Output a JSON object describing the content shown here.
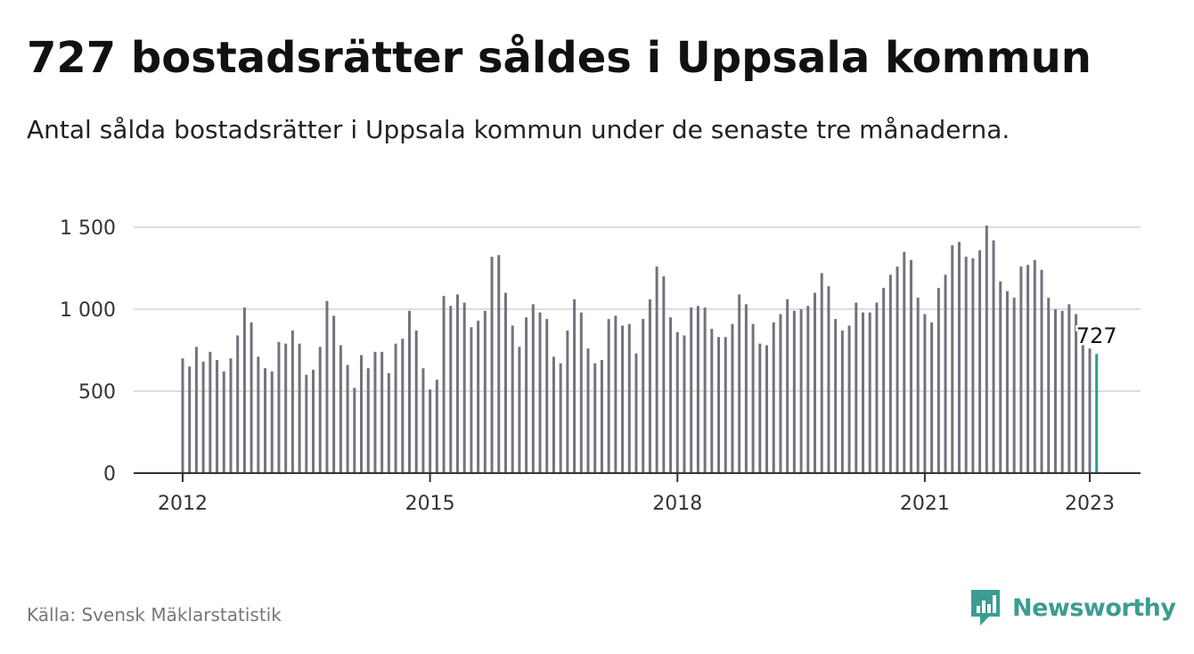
{
  "title": "727 bostadsrätter såldes i Uppsala kommun",
  "subtitle": "Antal sålda bostadsrätter i Uppsala kommun under de senaste tre månaderna.",
  "source": "Källa: Svensk Mäklarstatistik",
  "brand": {
    "name": "Newsworthy",
    "icon": "newsworthy-logo-icon"
  },
  "colors": {
    "bar": "#72737c",
    "highlight": "#2a9d8f",
    "grid": "#dddddd",
    "axis": "#333333",
    "text": "#111111",
    "brand": "#3b9d92"
  },
  "chart_data": {
    "type": "bar",
    "x_start": "2012-01",
    "x_end": "2023-01",
    "x_ticks": [
      "2012",
      "2015",
      "2018",
      "2021",
      "2023"
    ],
    "y_ticks": [
      "0",
      "500",
      "1 000",
      "1 500"
    ],
    "ylim": [
      0,
      1500
    ],
    "grid": true,
    "highlight_label": "727",
    "values": [
      700,
      650,
      770,
      680,
      740,
      690,
      620,
      700,
      840,
      1010,
      920,
      710,
      640,
      620,
      800,
      790,
      870,
      790,
      600,
      630,
      770,
      1050,
      960,
      780,
      660,
      520,
      720,
      640,
      740,
      740,
      610,
      790,
      820,
      990,
      870,
      640,
      510,
      570,
      1080,
      1020,
      1090,
      1040,
      890,
      930,
      990,
      1320,
      1330,
      1100,
      900,
      770,
      950,
      1030,
      980,
      940,
      710,
      670,
      870,
      1060,
      980,
      760,
      670,
      690,
      940,
      960,
      900,
      910,
      730,
      940,
      1060,
      1260,
      1200,
      950,
      860,
      840,
      1010,
      1020,
      1010,
      880,
      830,
      830,
      910,
      1090,
      1030,
      910,
      790,
      780,
      920,
      970,
      1060,
      990,
      1000,
      1020,
      1100,
      1220,
      1140,
      940,
      870,
      900,
      1040,
      980,
      980,
      1040,
      1130,
      1210,
      1260,
      1350,
      1300,
      1070,
      970,
      920,
      1130,
      1210,
      1390,
      1410,
      1320,
      1310,
      1360,
      1510,
      1420,
      1170,
      1110,
      1070,
      1260,
      1270,
      1300,
      1240,
      1070,
      1000,
      990,
      1030,
      970,
      790,
      760,
      727
    ]
  }
}
